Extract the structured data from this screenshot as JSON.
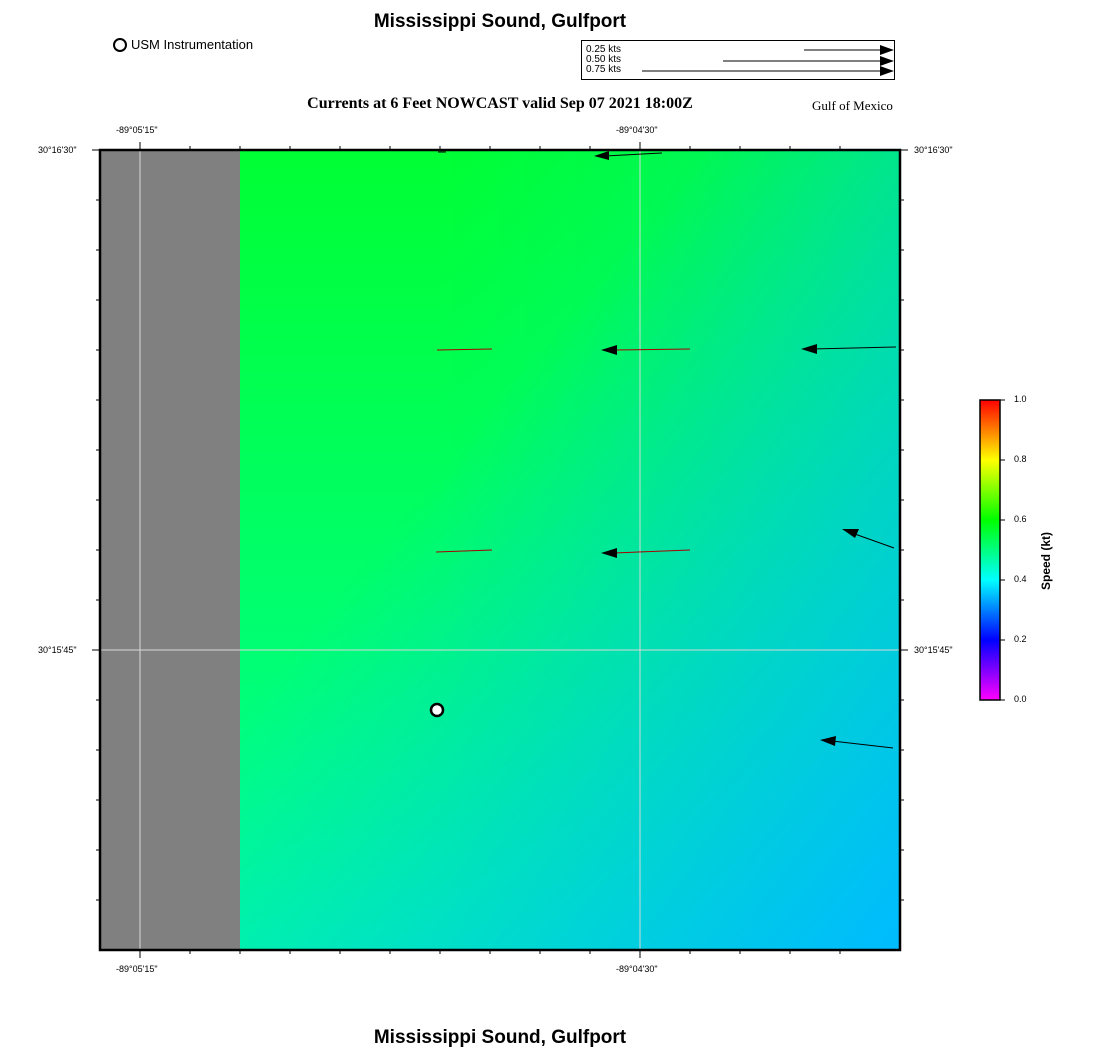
{
  "map": {
    "title_top": "Mississippi Sound, Gulfport",
    "title_bottom": "Mississippi Sound, Gulfport",
    "subtitle": "Currents at 6 Feet NOWCAST valid Sep 07 2021 18:00Z",
    "region_label": "Gulf of Mexico",
    "legend_usm": "USM Instrumentation",
    "lon_labels": [
      "-89°05'15\"",
      "-89°04'30\""
    ],
    "lat_labels": [
      "30°16'30\"",
      "30°15'45\""
    ],
    "scale": [
      {
        "label": "0.25 kts",
        "value": 0.25
      },
      {
        "label": "0.50 kts",
        "value": 0.5
      },
      {
        "label": "0.75 kts",
        "value": 0.75
      }
    ]
  },
  "colorbar": {
    "label": "Speed (kt)",
    "ticks": [
      "0.0",
      "0.2",
      "0.4",
      "0.6",
      "0.8",
      "1.0"
    ],
    "colors": [
      "#ff00ff",
      "#0000ff",
      "#00ffff",
      "#00ff00",
      "#ffff00",
      "#ff0000"
    ]
  },
  "colors": {
    "land": "#808080",
    "water_nw": "#00ff33",
    "water_sw": "#00ff99",
    "water_se": "#00bbff",
    "water_ne": "#00f080",
    "arrow": "#000000",
    "arrow_shaft_slow": "#aa0000"
  }
}
